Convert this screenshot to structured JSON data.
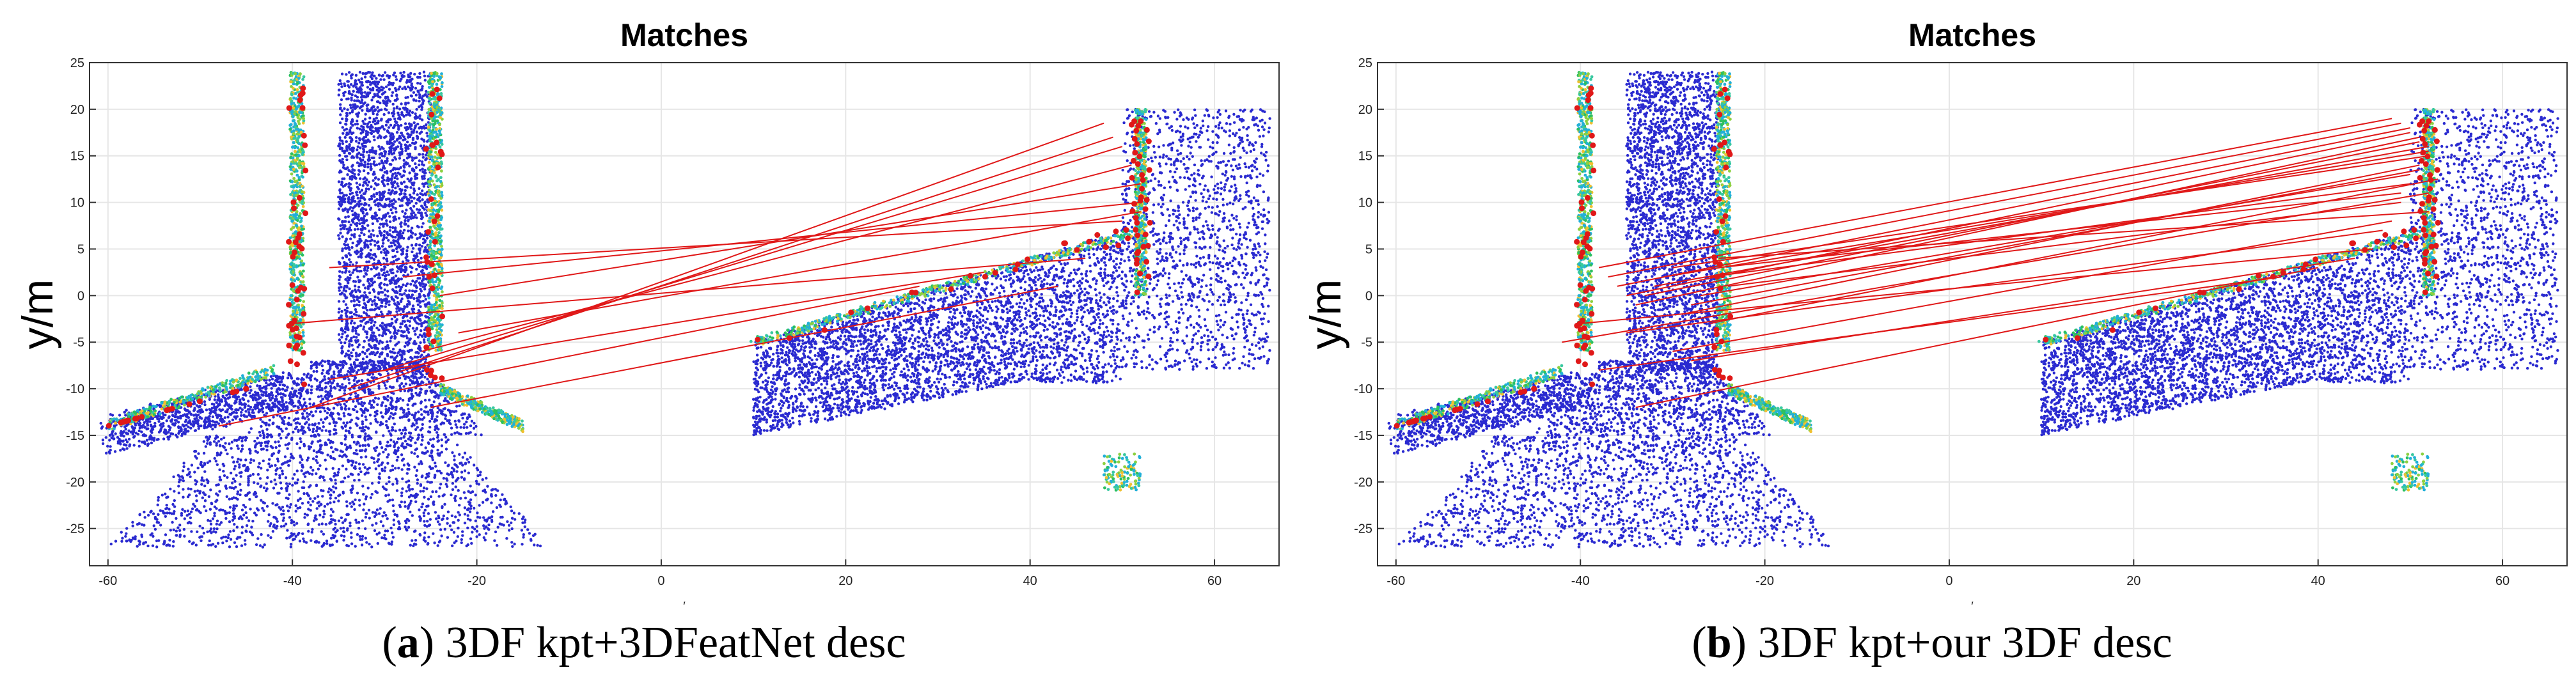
{
  "figure": {
    "captions": [
      {
        "letter": "a",
        "text": ") 3DF kpt+3DFeatNet desc",
        "open": "("
      },
      {
        "letter": "b",
        "text": ") 3DF kpt+our 3DF desc",
        "open": "("
      }
    ],
    "xlabel_glyph": "′"
  },
  "chart_data": [
    {
      "type": "scatter",
      "title": "Matches",
      "xlabel": "",
      "ylabel": "y/m",
      "xlim": [
        -62,
        67
      ],
      "ylim": [
        -29,
        25
      ],
      "xticks": [
        -60,
        -40,
        -20,
        0,
        20,
        40,
        60
      ],
      "yticks": [
        -25,
        -20,
        -15,
        -10,
        -5,
        0,
        5,
        10,
        15,
        20,
        25
      ],
      "grid": true,
      "series": [
        {
          "name": "point cloud 1 (low)",
          "color": "#2a2ad0"
        },
        {
          "name": "point cloud 1 (high)",
          "color": "#22b0d8"
        },
        {
          "name": "point cloud 2 (low)",
          "color": "#2a2ad0"
        },
        {
          "name": "point cloud 2 (high)",
          "color": "#22b0d8"
        },
        {
          "name": "keypoints",
          "color": "#e01818"
        }
      ],
      "matches": [
        [
          [
            -38,
            -12
          ],
          [
            48,
            18.5
          ]
        ],
        [
          [
            -34,
            -10
          ],
          [
            49,
            17
          ]
        ],
        [
          [
            -30,
            -8
          ],
          [
            50,
            16
          ]
        ],
        [
          [
            -26,
            -6
          ],
          [
            51,
            14
          ]
        ],
        [
          [
            -24,
            0
          ],
          [
            52,
            12
          ]
        ],
        [
          [
            -28,
            2
          ],
          [
            52,
            10
          ]
        ],
        [
          [
            -36,
            3
          ],
          [
            50,
            8
          ]
        ],
        [
          [
            -40,
            -3
          ],
          [
            46,
            4
          ]
        ],
        [
          [
            -25,
            -12
          ],
          [
            43,
            1
          ]
        ],
        [
          [
            -36,
            -9
          ],
          [
            35,
            2.5
          ]
        ],
        [
          [
            -48,
            -14
          ],
          [
            28,
            1
          ]
        ],
        [
          [
            -22,
            -4
          ],
          [
            52,
            9
          ]
        ]
      ]
    },
    {
      "type": "scatter",
      "title": "Matches",
      "xlabel": "",
      "ylabel": "y/m",
      "xlim": [
        -62,
        67
      ],
      "ylim": [
        -29,
        25
      ],
      "xticks": [
        -60,
        -40,
        -20,
        0,
        20,
        40,
        60
      ],
      "yticks": [
        -25,
        -20,
        -15,
        -10,
        -5,
        0,
        5,
        10,
        15,
        20,
        25
      ],
      "grid": true,
      "series": [
        {
          "name": "point cloud 1 (low)",
          "color": "#2a2ad0"
        },
        {
          "name": "point cloud 1 (high)",
          "color": "#22b0d8"
        },
        {
          "name": "point cloud 2 (low)",
          "color": "#2a2ad0"
        },
        {
          "name": "point cloud 2 (high)",
          "color": "#22b0d8"
        },
        {
          "name": "keypoints",
          "color": "#e01818"
        }
      ],
      "matches": [
        [
          [
            -38,
            3
          ],
          [
            48,
            19
          ]
        ],
        [
          [
            -37,
            2
          ],
          [
            49,
            18.5
          ]
        ],
        [
          [
            -36,
            1
          ],
          [
            50,
            18
          ]
        ],
        [
          [
            -35,
            0
          ],
          [
            50,
            17.5
          ]
        ],
        [
          [
            -34,
            -1
          ],
          [
            51,
            17
          ]
        ],
        [
          [
            -33,
            0
          ],
          [
            51,
            16.5
          ]
        ],
        [
          [
            -32,
            1
          ],
          [
            52,
            16
          ]
        ],
        [
          [
            -31,
            2
          ],
          [
            52,
            15.5
          ]
        ],
        [
          [
            -30,
            3
          ],
          [
            52,
            15
          ]
        ],
        [
          [
            -29,
            -2
          ],
          [
            51,
            14
          ]
        ],
        [
          [
            -28,
            -1
          ],
          [
            51,
            13.5
          ]
        ],
        [
          [
            -27,
            0
          ],
          [
            50,
            13
          ]
        ],
        [
          [
            -26,
            2
          ],
          [
            50,
            12
          ]
        ],
        [
          [
            -25,
            3
          ],
          [
            49,
            11
          ]
        ],
        [
          [
            -24,
            1
          ],
          [
            49,
            10
          ]
        ],
        [
          [
            -25,
            4
          ],
          [
            52,
            9
          ]
        ],
        [
          [
            -30,
            -6
          ],
          [
            48,
            8
          ]
        ],
        [
          [
            -35,
            -4
          ],
          [
            47,
            7
          ]
        ],
        [
          [
            -40,
            -3
          ],
          [
            46,
            5
          ]
        ],
        [
          [
            -28,
            -7
          ],
          [
            44,
            4
          ]
        ],
        [
          [
            -34,
            -12
          ],
          [
            40,
            3
          ]
        ],
        [
          [
            -38,
            -8
          ],
          [
            36,
            2
          ]
        ],
        [
          [
            -42,
            -5
          ],
          [
            52,
            11
          ]
        ],
        [
          [
            -26,
            -3
          ],
          [
            53,
            12.5
          ]
        ]
      ]
    }
  ]
}
